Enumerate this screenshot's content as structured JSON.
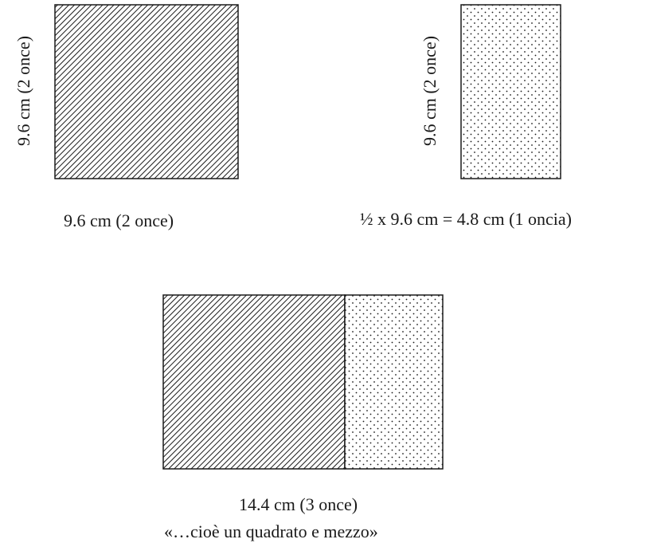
{
  "figure": {
    "square": {
      "side_label": "9.6 cm (2 once)",
      "bottom_label": "9.6 cm (2 once)",
      "fill": "diagonal-hatch"
    },
    "half_rect": {
      "side_label": "9.6 cm (2 once)",
      "bottom_label": "½ x 9.6 cm = 4.8 cm (1 oncia)",
      "fill": "dots"
    },
    "combined": {
      "bottom_label": "14.4 cm (3 once)",
      "caption": "«…cioè un quadrato e mezzo»"
    }
  },
  "colors": {
    "ink": "#1a1a1a",
    "background": "#ffffff"
  }
}
